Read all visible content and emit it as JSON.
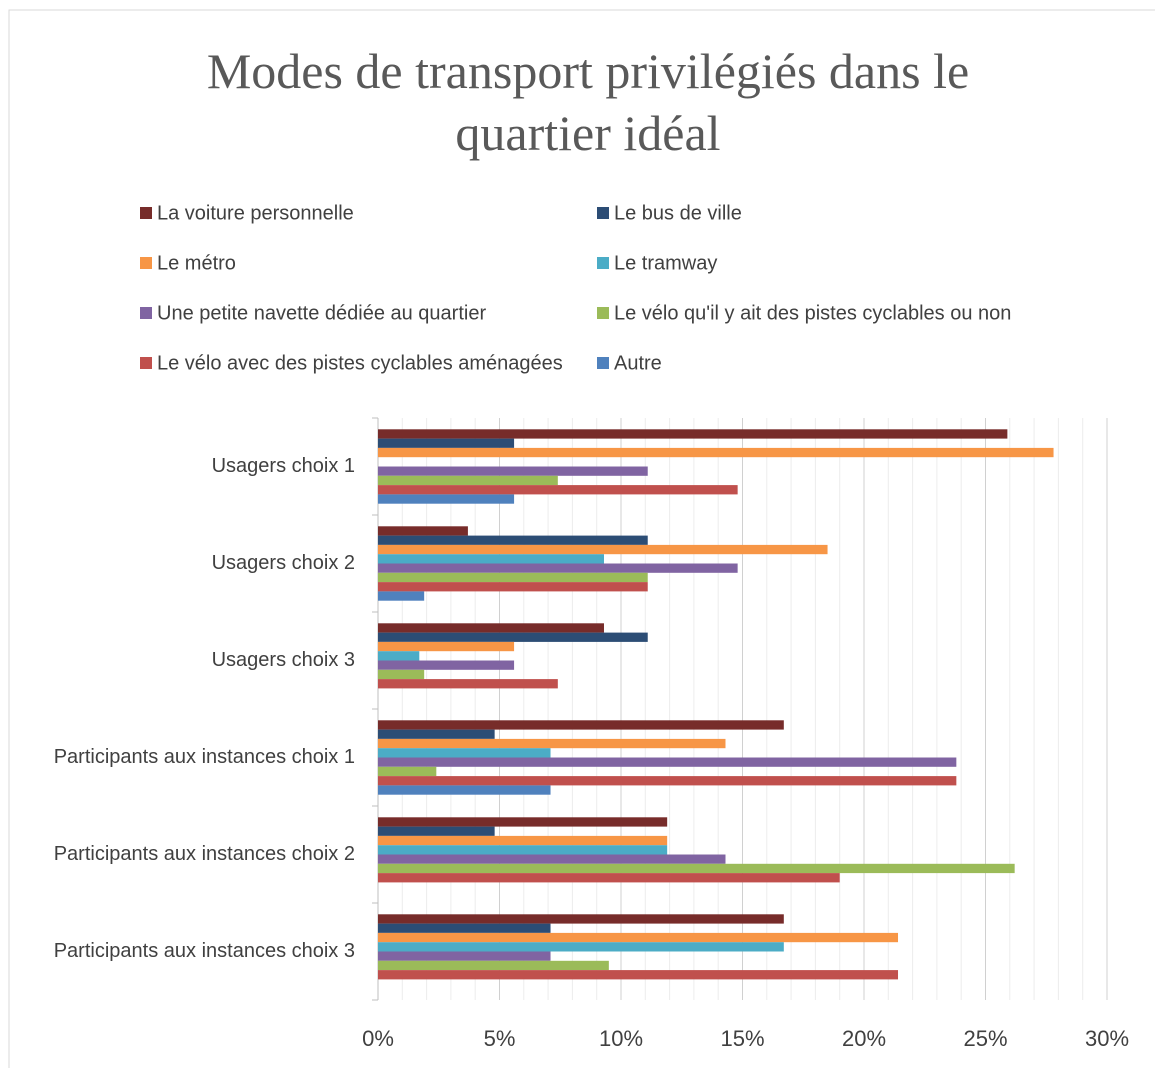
{
  "chart_data": {
    "type": "barh",
    "title": "Modes de transport privilégiés dans le quartier idéal",
    "categories": [
      "Usagers choix 1",
      "Usagers choix 2",
      "Usagers choix 3",
      "Participants aux instances choix 1",
      "Participants aux instances choix 2",
      "Participants aux instances choix 3"
    ],
    "series": [
      {
        "name": "La voiture personnelle",
        "color": "#772c2a",
        "values": [
          25.9,
          3.7,
          9.3,
          16.7,
          11.9,
          16.7
        ]
      },
      {
        "name": "Le bus de ville",
        "color": "#2c4d75",
        "values": [
          5.6,
          11.1,
          11.1,
          4.8,
          4.8,
          7.1
        ]
      },
      {
        "name": "Le métro",
        "color": "#f79646",
        "values": [
          27.8,
          18.5,
          5.6,
          14.3,
          11.9,
          21.4
        ]
      },
      {
        "name": "Le tramway",
        "color": "#4bacc6",
        "values": [
          0,
          9.3,
          1.7,
          7.1,
          11.9,
          16.7
        ]
      },
      {
        "name": "Une petite navette dédiée au quartier",
        "color": "#8064a2",
        "values": [
          11.1,
          14.8,
          5.6,
          23.8,
          14.3,
          7.1
        ]
      },
      {
        "name": "Le vélo qu'il y ait des pistes cyclables ou non",
        "color": "#9bbb59",
        "values": [
          7.4,
          11.1,
          1.9,
          2.4,
          26.2,
          9.5
        ]
      },
      {
        "name": "Le vélo avec des pistes cyclables aménagées",
        "color": "#c0504d",
        "values": [
          14.8,
          11.1,
          7.4,
          23.8,
          19.0,
          21.4
        ]
      },
      {
        "name": "Autre",
        "color": "#4f81bd",
        "values": [
          5.6,
          1.9,
          0,
          7.1,
          0,
          0
        ]
      }
    ],
    "xlim": [
      0,
      30
    ],
    "xticks": [
      {
        "value": 0,
        "label": "0%"
      },
      {
        "value": 5,
        "label": "5%"
      },
      {
        "value": 10,
        "label": "10%"
      },
      {
        "value": 15,
        "label": "15%"
      },
      {
        "value": 20,
        "label": "20%"
      },
      {
        "value": 25,
        "label": "25%"
      },
      {
        "value": 30,
        "label": "30%"
      }
    ],
    "xminorticks": [
      1,
      2,
      3,
      4,
      6,
      7,
      8,
      9,
      11,
      12,
      13,
      14,
      16,
      17,
      18,
      19,
      21,
      22,
      23,
      24,
      26,
      27,
      28,
      29
    ],
    "grid": true,
    "legend": "top"
  }
}
